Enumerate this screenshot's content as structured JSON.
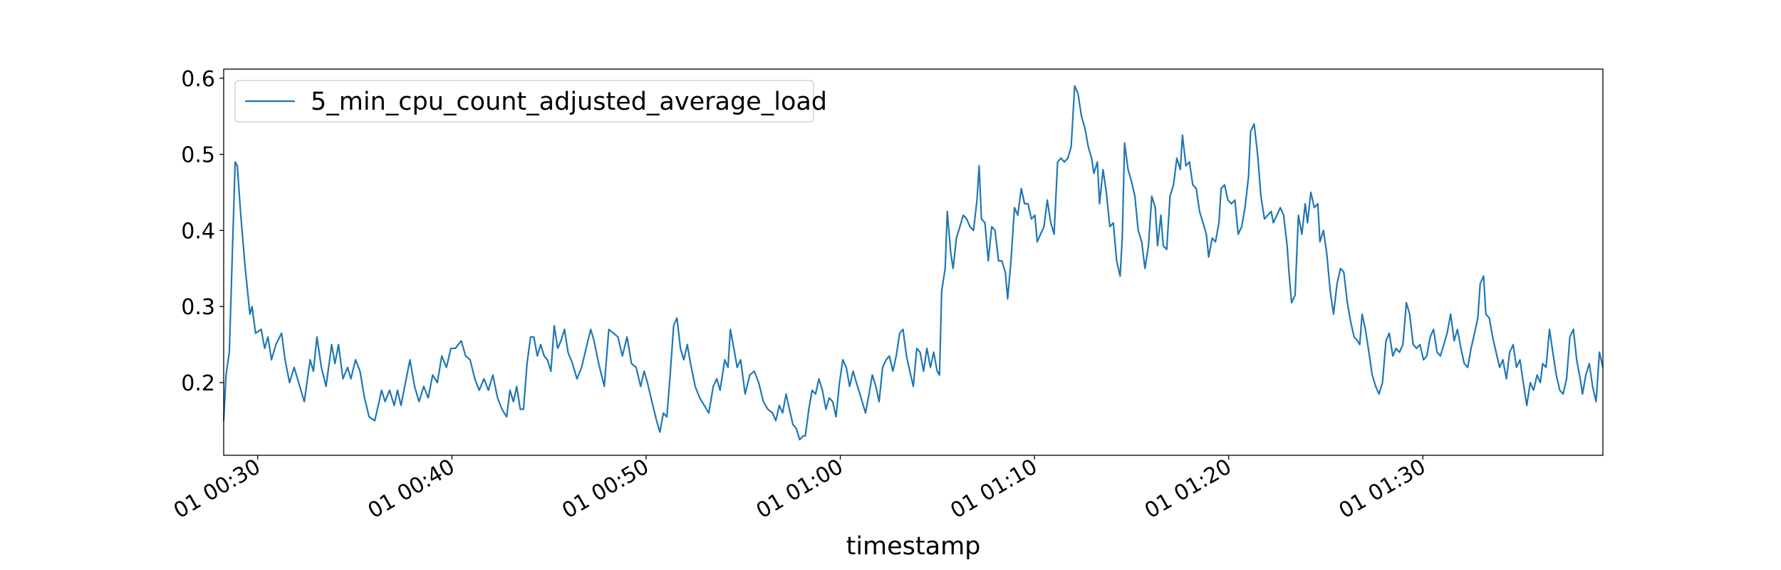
{
  "chart_data": {
    "type": "line",
    "xlabel": "timestamp",
    "x": [
      28.25,
      28.37,
      28.54,
      28.84,
      28.95,
      29.13,
      29.36,
      29.6,
      29.71,
      29.89,
      30.18,
      30.36,
      30.53,
      30.71,
      30.94,
      31.23,
      31.41,
      31.64,
      31.88,
      32.11,
      32.4,
      32.7,
      32.87,
      33.05,
      33.28,
      33.52,
      33.81,
      33.98,
      34.16,
      34.39,
      34.63,
      34.8,
      35.04,
      35.27,
      35.5,
      35.74,
      36.03,
      36.21,
      36.38,
      36.56,
      36.79,
      37.03,
      37.2,
      37.38,
      37.61,
      37.84,
      38.08,
      38.31,
      38.55,
      38.78,
      39.01,
      39.25,
      39.48,
      39.72,
      39.95,
      40.18,
      40.48,
      40.71,
      40.94,
      41.18,
      41.41,
      41.65,
      41.88,
      42.11,
      42.35,
      42.58,
      42.82,
      42.99,
      43.17,
      43.34,
      43.52,
      43.69,
      43.87,
      44.05,
      44.22,
      44.4,
      44.57,
      44.75,
      44.92,
      45.1,
      45.27,
      45.45,
      45.62,
      45.8,
      45.98,
      46.21,
      46.44,
      46.68,
      46.91,
      47.15,
      47.32,
      47.56,
      47.85,
      48.08,
      48.32,
      48.55,
      48.78,
      49.02,
      49.25,
      49.49,
      49.72,
      49.9,
      50.07,
      50.3,
      50.54,
      50.71,
      50.89,
      51.07,
      51.24,
      51.42,
      51.59,
      51.77,
      51.94,
      52.12,
      52.29,
      52.53,
      52.76,
      53.0,
      53.23,
      53.46,
      53.64,
      53.81,
      54.05,
      54.22,
      54.34,
      54.52,
      54.69,
      54.87,
      55.1,
      55.34,
      55.57,
      55.8,
      56.04,
      56.27,
      56.51,
      56.68,
      56.86,
      57.03,
      57.21,
      57.38,
      57.56,
      57.73,
      57.91,
      58.09,
      58.2,
      58.38,
      58.55,
      58.73,
      58.9,
      59.08,
      59.26,
      59.43,
      59.61,
      59.78,
      59.96,
      60.13,
      60.31,
      60.48,
      60.66,
      60.83,
      61.07,
      61.3,
      61.48,
      61.65,
      61.83,
      62.0,
      62.18,
      62.36,
      62.53,
      62.71,
      62.88,
      63.06,
      63.23,
      63.41,
      63.58,
      63.76,
      63.94,
      64.11,
      64.29,
      64.46,
      64.64,
      64.81,
      64.99,
      65.11,
      65.22,
      65.4,
      65.51,
      65.69,
      65.81,
      65.98,
      66.16,
      66.33,
      66.51,
      66.68,
      66.86,
      67.04,
      67.15,
      67.27,
      67.45,
      67.62,
      67.8,
      67.97,
      68.15,
      68.32,
      68.5,
      68.62,
      68.79,
      68.97,
      69.14,
      69.32,
      69.49,
      69.67,
      69.84,
      70.02,
      70.14,
      70.31,
      70.49,
      70.66,
      70.84,
      71.01,
      71.19,
      71.36,
      71.54,
      71.72,
      71.89,
      72.07,
      72.24,
      72.42,
      72.59,
      72.77,
      72.94,
      73.06,
      73.24,
      73.35,
      73.53,
      73.7,
      73.88,
      74.06,
      74.23,
      74.41,
      74.52,
      74.64,
      74.82,
      74.99,
      75.17,
      75.34,
      75.52,
      75.69,
      75.87,
      76.04,
      76.22,
      76.34,
      76.51,
      76.63,
      76.81,
      76.98,
      77.16,
      77.33,
      77.51,
      77.62,
      77.8,
      77.98,
      78.15,
      78.33,
      78.5,
      78.68,
      78.85,
      78.97,
      79.15,
      79.32,
      79.5,
      79.61,
      79.79,
      79.96,
      80.14,
      80.32,
      80.49,
      80.67,
      80.84,
      81.02,
      81.13,
      81.31,
      81.49,
      81.66,
      81.84,
      82.01,
      82.19,
      82.3,
      82.48,
      82.66,
      82.83,
      83.01,
      83.12,
      83.24,
      83.42,
      83.59,
      83.77,
      83.94,
      84.06,
      84.23,
      84.41,
      84.59,
      84.7,
      84.88,
      85.05,
      85.23,
      85.4,
      85.58,
      85.76,
      85.93,
      86.11,
      86.28,
      86.46,
      86.63,
      86.75,
      86.87,
      87.04,
      87.22,
      87.39,
      87.57,
      87.74,
      87.92,
      88.1,
      88.27,
      88.45,
      88.62,
      88.8,
      88.97,
      89.15,
      89.32,
      89.5,
      89.68,
      89.85,
      90.03,
      90.2,
      90.38,
      90.55,
      90.73,
      90.9,
      91.08,
      91.25,
      91.43,
      91.61,
      91.78,
      91.96,
      92.13,
      92.31,
      92.48,
      92.66,
      92.83,
      92.95,
      93.13,
      93.24,
      93.42,
      93.59,
      93.77,
      93.95,
      94.12,
      94.3,
      94.47,
      94.65,
      94.82,
      95.0,
      95.17,
      95.35,
      95.53,
      95.7,
      95.88,
      96.05,
      96.17,
      96.34,
      96.52,
      96.69,
      96.87,
      97.05,
      97.22,
      97.4,
      97.57,
      97.75,
      97.92,
      98.1,
      98.22,
      98.39,
      98.57,
      98.74,
      98.92,
      99.09,
      99.27
    ],
    "series": [
      {
        "name": "5_min_cpu_count_adjusted_average_load",
        "color": "#1f77b4",
        "values": [
          0.15,
          0.21,
          0.24,
          0.49,
          0.485,
          0.42,
          0.35,
          0.29,
          0.3,
          0.265,
          0.27,
          0.245,
          0.26,
          0.23,
          0.25,
          0.265,
          0.23,
          0.2,
          0.22,
          0.2,
          0.175,
          0.23,
          0.215,
          0.26,
          0.22,
          0.195,
          0.25,
          0.225,
          0.25,
          0.205,
          0.22,
          0.205,
          0.23,
          0.215,
          0.18,
          0.155,
          0.15,
          0.17,
          0.19,
          0.175,
          0.19,
          0.17,
          0.19,
          0.17,
          0.2,
          0.23,
          0.195,
          0.175,
          0.195,
          0.18,
          0.21,
          0.2,
          0.235,
          0.22,
          0.245,
          0.245,
          0.255,
          0.235,
          0.23,
          0.205,
          0.19,
          0.205,
          0.19,
          0.21,
          0.18,
          0.165,
          0.155,
          0.19,
          0.175,
          0.195,
          0.165,
          0.165,
          0.225,
          0.26,
          0.26,
          0.235,
          0.25,
          0.235,
          0.23,
          0.215,
          0.275,
          0.245,
          0.255,
          0.27,
          0.24,
          0.225,
          0.205,
          0.22,
          0.245,
          0.27,
          0.255,
          0.225,
          0.195,
          0.27,
          0.265,
          0.26,
          0.235,
          0.26,
          0.225,
          0.22,
          0.195,
          0.215,
          0.2,
          0.175,
          0.15,
          0.135,
          0.16,
          0.155,
          0.21,
          0.275,
          0.285,
          0.245,
          0.23,
          0.25,
          0.225,
          0.195,
          0.18,
          0.17,
          0.16,
          0.195,
          0.205,
          0.19,
          0.23,
          0.22,
          0.27,
          0.245,
          0.22,
          0.23,
          0.185,
          0.21,
          0.215,
          0.2,
          0.175,
          0.165,
          0.16,
          0.15,
          0.17,
          0.16,
          0.185,
          0.165,
          0.145,
          0.14,
          0.125,
          0.13,
          0.13,
          0.165,
          0.19,
          0.185,
          0.205,
          0.19,
          0.165,
          0.18,
          0.175,
          0.155,
          0.2,
          0.23,
          0.22,
          0.195,
          0.215,
          0.2,
          0.18,
          0.16,
          0.185,
          0.21,
          0.195,
          0.175,
          0.22,
          0.23,
          0.235,
          0.215,
          0.235,
          0.265,
          0.27,
          0.235,
          0.215,
          0.195,
          0.245,
          0.24,
          0.215,
          0.245,
          0.22,
          0.24,
          0.215,
          0.21,
          0.32,
          0.35,
          0.425,
          0.37,
          0.35,
          0.39,
          0.405,
          0.42,
          0.415,
          0.405,
          0.4,
          0.44,
          0.485,
          0.415,
          0.41,
          0.36,
          0.405,
          0.4,
          0.36,
          0.36,
          0.345,
          0.31,
          0.36,
          0.43,
          0.42,
          0.455,
          0.435,
          0.435,
          0.415,
          0.42,
          0.385,
          0.395,
          0.405,
          0.44,
          0.41,
          0.395,
          0.49,
          0.495,
          0.49,
          0.495,
          0.51,
          0.59,
          0.58,
          0.55,
          0.535,
          0.51,
          0.495,
          0.475,
          0.49,
          0.435,
          0.48,
          0.45,
          0.405,
          0.41,
          0.36,
          0.34,
          0.39,
          0.515,
          0.48,
          0.465,
          0.445,
          0.4,
          0.385,
          0.35,
          0.38,
          0.445,
          0.43,
          0.38,
          0.42,
          0.38,
          0.375,
          0.445,
          0.46,
          0.495,
          0.48,
          0.525,
          0.485,
          0.49,
          0.46,
          0.455,
          0.425,
          0.41,
          0.395,
          0.365,
          0.39,
          0.385,
          0.41,
          0.455,
          0.46,
          0.44,
          0.435,
          0.44,
          0.395,
          0.405,
          0.43,
          0.47,
          0.53,
          0.54,
          0.5,
          0.445,
          0.415,
          0.42,
          0.425,
          0.41,
          0.42,
          0.43,
          0.42,
          0.38,
          0.34,
          0.305,
          0.315,
          0.42,
          0.395,
          0.435,
          0.41,
          0.45,
          0.43,
          0.435,
          0.385,
          0.4,
          0.37,
          0.32,
          0.29,
          0.33,
          0.35,
          0.345,
          0.305,
          0.28,
          0.26,
          0.255,
          0.25,
          0.29,
          0.27,
          0.24,
          0.21,
          0.195,
          0.185,
          0.2,
          0.255,
          0.265,
          0.235,
          0.245,
          0.24,
          0.25,
          0.305,
          0.29,
          0.25,
          0.245,
          0.25,
          0.23,
          0.235,
          0.26,
          0.27,
          0.24,
          0.235,
          0.25,
          0.265,
          0.29,
          0.255,
          0.27,
          0.245,
          0.225,
          0.22,
          0.245,
          0.265,
          0.285,
          0.33,
          0.34,
          0.29,
          0.285,
          0.26,
          0.24,
          0.22,
          0.23,
          0.205,
          0.24,
          0.25,
          0.22,
          0.23,
          0.2,
          0.17,
          0.2,
          0.19,
          0.21,
          0.2,
          0.225,
          0.22,
          0.27,
          0.24,
          0.21,
          0.19,
          0.185,
          0.205,
          0.26,
          0.27,
          0.23,
          0.205,
          0.185,
          0.21,
          0.225,
          0.195,
          0.175,
          0.24,
          0.22
        ]
      }
    ],
    "xlim": [
      28.25,
      99.27
    ],
    "xticks": [
      {
        "value": 30,
        "label": "01 00:30"
      },
      {
        "value": 40,
        "label": "01 00:40"
      },
      {
        "value": 50,
        "label": "01 00:50"
      },
      {
        "value": 60,
        "label": "01 01:00"
      },
      {
        "value": 70,
        "label": "01 01:10"
      },
      {
        "value": 80,
        "label": "01 01:20"
      },
      {
        "value": 90,
        "label": "01 01:30"
      }
    ],
    "ylim": [
      0.1045,
      0.612
    ],
    "yticks": [
      0.2,
      0.3,
      0.4,
      0.5,
      0.6
    ],
    "grid": false,
    "legend": "upper left"
  }
}
